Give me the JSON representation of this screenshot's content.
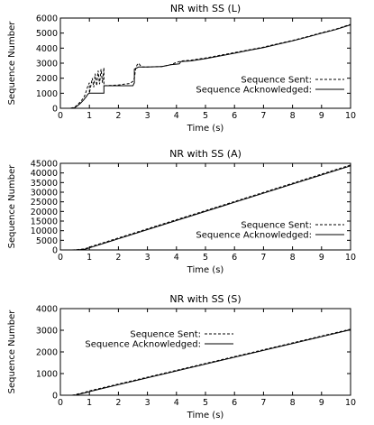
{
  "chart_data": [
    {
      "type": "line",
      "title": "NR with SS (L)",
      "xlabel": "Time (s)",
      "ylabel": "Sequence Number",
      "xlim": [
        0,
        10
      ],
      "ylim": [
        0,
        6000
      ],
      "xticks": [
        0,
        1,
        2,
        3,
        4,
        5,
        6,
        7,
        8,
        9,
        10
      ],
      "yticks": [
        0,
        1000,
        2000,
        3000,
        4000,
        5000,
        6000
      ],
      "grid": false,
      "legend_position": "bottom-right",
      "series": [
        {
          "name": "Sequence Sent:",
          "style": "dashed",
          "x": [
            0.35,
            0.5,
            0.6,
            0.7,
            0.8,
            0.85,
            0.9,
            0.95,
            1.0,
            1.0,
            1.1,
            1.15,
            1.2,
            1.25,
            1.3,
            1.35,
            1.4,
            1.45,
            1.5,
            1.5,
            2.0,
            2.2,
            2.4,
            2.5,
            2.55,
            2.6,
            2.65,
            2.7,
            2.75,
            2.8,
            3.0,
            3.5,
            3.8,
            4.0,
            4.2,
            4.5,
            5.0,
            5.5,
            6.0,
            6.5,
            7.0,
            7.5,
            8.0,
            8.5,
            9.0,
            9.5,
            10.0
          ],
          "y": [
            0,
            80,
            250,
            450,
            700,
            900,
            1200,
            1500,
            1700,
            1000,
            2000,
            1400,
            2300,
            1500,
            2500,
            1600,
            2600,
            1700,
            2700,
            1500,
            1550,
            1600,
            1650,
            1800,
            2000,
            2700,
            2900,
            3000,
            2850,
            2750,
            2750,
            2780,
            2900,
            3050,
            3150,
            3200,
            3350,
            3520,
            3700,
            3880,
            4070,
            4290,
            4510,
            4760,
            5020,
            5270,
            5580
          ]
        },
        {
          "name": "Sequence Acknowledged:",
          "style": "solid",
          "x": [
            0.35,
            0.5,
            0.6,
            0.7,
            0.8,
            0.9,
            0.95,
            1.0,
            1.5,
            1.5,
            2.5,
            2.55,
            2.55,
            2.65,
            2.7,
            2.8,
            3.0,
            3.5,
            3.7,
            3.8,
            4.1,
            4.15,
            4.5,
            5.0,
            5.5,
            6.0,
            6.5,
            7.0,
            7.5,
            8.0,
            8.5,
            9.0,
            9.5,
            10.0
          ],
          "y": [
            0,
            50,
            180,
            350,
            550,
            800,
            950,
            1000,
            1000,
            1500,
            1500,
            1700,
            2600,
            2700,
            2750,
            2750,
            2750,
            2780,
            2850,
            2900,
            2950,
            3100,
            3150,
            3300,
            3480,
            3660,
            3850,
            4040,
            4260,
            4480,
            4730,
            4990,
            5240,
            5550
          ]
        }
      ]
    },
    {
      "type": "line",
      "title": "NR with SS (A)",
      "xlabel": "Time (s)",
      "ylabel": "Sequence Number",
      "xlim": [
        0,
        10
      ],
      "ylim": [
        0,
        45000
      ],
      "xticks": [
        0,
        1,
        2,
        3,
        4,
        5,
        6,
        7,
        8,
        9,
        10
      ],
      "yticks": [
        0,
        5000,
        10000,
        15000,
        20000,
        25000,
        30000,
        35000,
        40000,
        45000
      ],
      "grid": false,
      "legend_position": "bottom-right",
      "series": [
        {
          "name": "Sequence Sent:",
          "style": "dashed",
          "x": [
            0.4,
            0.6,
            0.8,
            0.9,
            1.0,
            10.0
          ],
          "y": [
            0,
            200,
            500,
            900,
            1500,
            44100
          ]
        },
        {
          "name": "Sequence Acknowledged:",
          "style": "solid",
          "x": [
            0.45,
            0.65,
            0.85,
            0.95,
            1.05,
            10.0
          ],
          "y": [
            0,
            150,
            400,
            800,
            1300,
            43700
          ]
        }
      ]
    },
    {
      "type": "line",
      "title": "NR with SS (S)",
      "xlabel": "Time (s)",
      "ylabel": "Sequence Number",
      "xlim": [
        0,
        10
      ],
      "ylim": [
        0,
        4000
      ],
      "xticks": [
        0,
        1,
        2,
        3,
        4,
        5,
        6,
        7,
        8,
        9,
        10
      ],
      "yticks": [
        0,
        1000,
        2000,
        3000,
        4000
      ],
      "grid": false,
      "legend_position": "top-left",
      "series": [
        {
          "name": "Sequence Sent:",
          "style": "dashed",
          "x": [
            0.4,
            0.5,
            0.6,
            0.8,
            1.0,
            10.0
          ],
          "y": [
            0,
            20,
            60,
            120,
            200,
            3050
          ]
        },
        {
          "name": "Sequence Acknowledged:",
          "style": "solid",
          "x": [
            0.45,
            0.55,
            0.65,
            0.85,
            1.05,
            10.0
          ],
          "y": [
            0,
            15,
            50,
            110,
            185,
            3020
          ]
        }
      ]
    }
  ]
}
